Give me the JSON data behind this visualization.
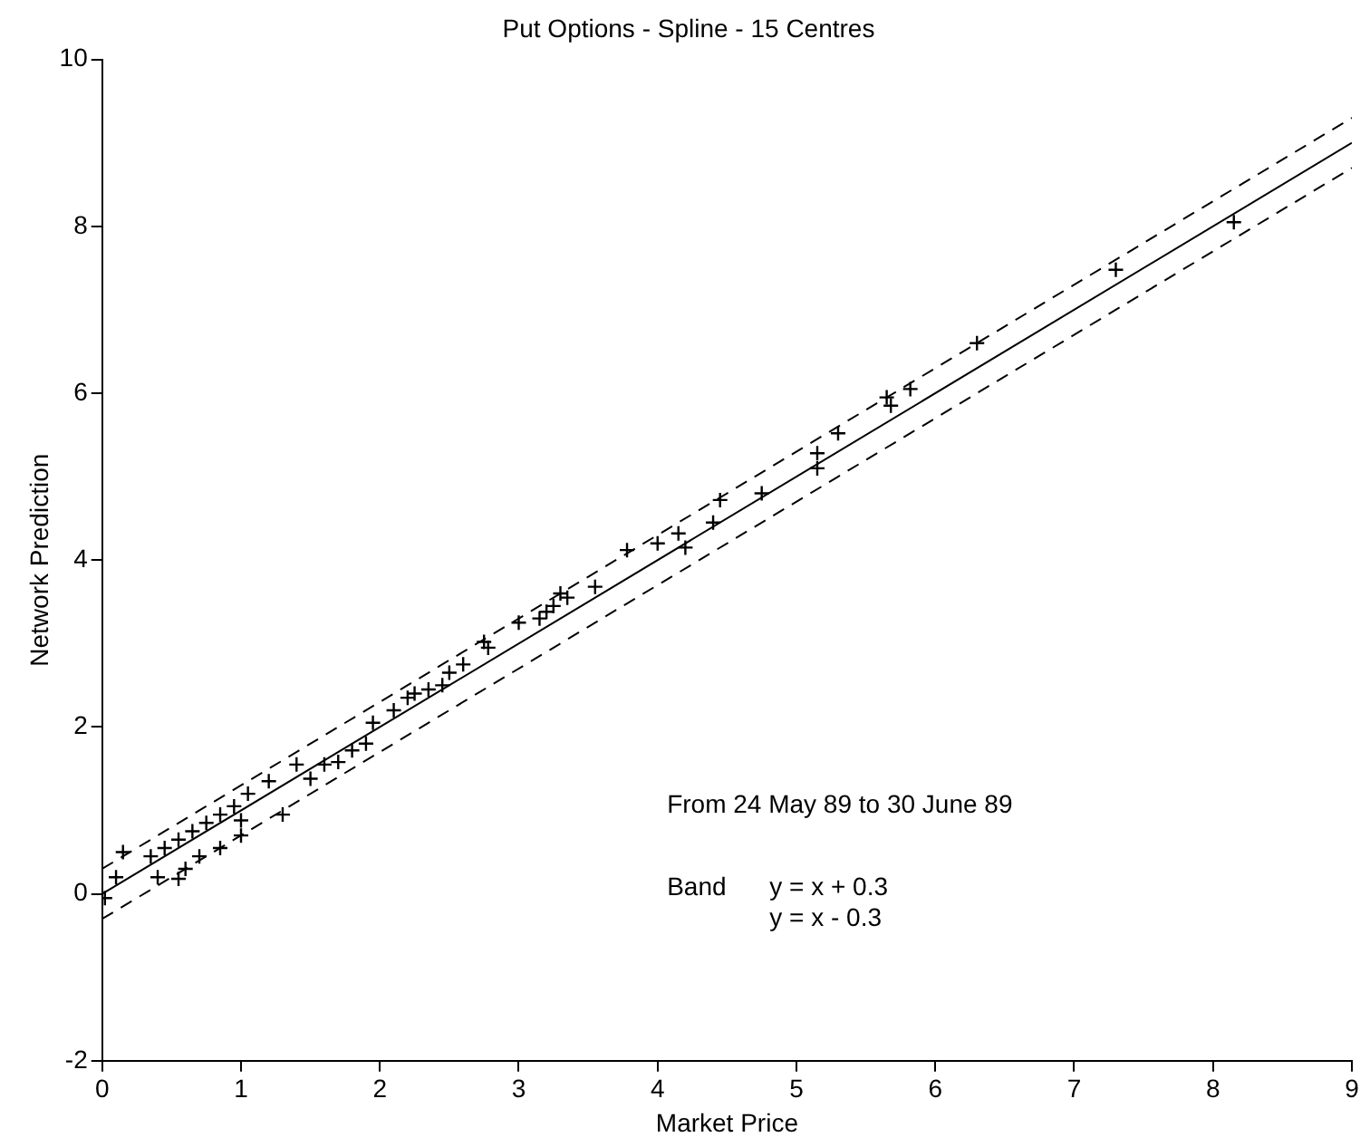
{
  "chart_data": {
    "type": "scatter",
    "title": "Put Options - Spline - 15 Centres",
    "xlabel": "Market Price",
    "ylabel": "Network Prediction",
    "xlim": [
      0,
      9
    ],
    "xticks": [
      0,
      1,
      2,
      3,
      4,
      5,
      6,
      7,
      8,
      9
    ],
    "ylim": [
      -2,
      10
    ],
    "yticks": [
      -2,
      0,
      2,
      4,
      6,
      8,
      10
    ],
    "grid": false,
    "legend": false,
    "annotations": [
      "From 24 May 89 to 30 June 89",
      "Band",
      "y = x + 0.3",
      "y = x - 0.3"
    ],
    "series": [
      {
        "color": "#000000",
        "marker": "cross",
        "x": [
          8.15,
          7.3,
          6.3,
          5.82,
          5.65,
          5.68,
          5.3,
          5.15,
          5.15,
          4.75,
          4.45,
          4.4,
          4.2,
          4.15,
          4.0,
          3.78,
          3.55,
          3.35,
          3.3,
          3.25,
          3.2,
          3.15,
          3.0,
          2.78,
          2.75,
          2.6,
          2.5,
          2.45,
          2.35,
          2.25,
          2.2,
          2.1,
          1.95,
          1.9,
          1.8,
          1.6,
          1.4,
          1.2,
          1.05,
          0.95,
          0.85,
          0.75,
          0.65,
          0.55,
          0.45,
          0.35,
          0.1,
          0.02,
          0.15,
          0.55,
          0.6,
          0.85,
          1.3,
          1.0,
          0.4,
          0.7,
          1.0,
          1.5,
          1.7
        ],
        "values": [
          8.05,
          7.48,
          6.6,
          6.05,
          5.95,
          5.85,
          5.52,
          5.28,
          5.1,
          4.8,
          4.72,
          4.45,
          4.15,
          4.32,
          4.2,
          4.12,
          3.68,
          3.55,
          3.6,
          3.45,
          3.38,
          3.3,
          3.25,
          2.95,
          3.02,
          2.75,
          2.65,
          2.5,
          2.45,
          2.4,
          2.35,
          2.2,
          2.05,
          1.8,
          1.72,
          1.55,
          1.55,
          1.35,
          1.2,
          1.05,
          0.95,
          0.85,
          0.75,
          0.65,
          0.55,
          0.45,
          0.2,
          -0.05,
          0.5,
          0.18,
          0.3,
          0.55,
          0.95,
          0.7,
          0.2,
          0.45,
          0.88,
          1.38,
          1.58
        ]
      },
      {
        "type": "line",
        "color": "#000000",
        "line_style": "solid",
        "marker": "none",
        "x": [
          0,
          9
        ],
        "values": [
          0,
          9
        ]
      },
      {
        "type": "line",
        "color": "#000000",
        "line_style": "dashed",
        "marker": "none",
        "x": [
          0,
          9
        ],
        "values": [
          0.3,
          9.3
        ]
      },
      {
        "type": "line",
        "color": "#000000",
        "line_style": "dashed",
        "marker": "none",
        "x": [
          0,
          9
        ],
        "values": [
          -0.3,
          8.7
        ]
      }
    ]
  }
}
